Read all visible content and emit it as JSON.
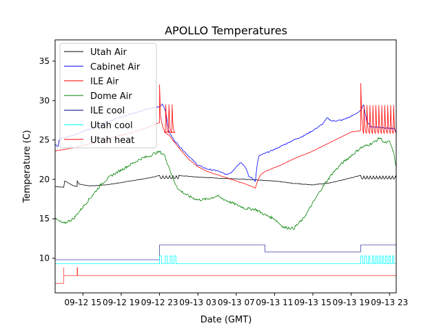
{
  "chart_data": {
    "type": "line",
    "title": "APOLLO Temperatures",
    "xlabel": "Date (GMT)",
    "ylabel": "Temperature (C)",
    "x_units": "hours since 09-12 00:00 GMT",
    "xlim": [
      12.1,
      47.7
    ],
    "ylim": [
      5.6,
      37.7
    ],
    "grid": false,
    "legend_position": "top-left",
    "x_ticks": [
      {
        "value": 15,
        "label": "09-12 15"
      },
      {
        "value": 19,
        "label": "09-12 19"
      },
      {
        "value": 23,
        "label": "09-12 23"
      },
      {
        "value": 27,
        "label": "09-13 03"
      },
      {
        "value": 31,
        "label": "09-13 07"
      },
      {
        "value": 35,
        "label": "09-13 11"
      },
      {
        "value": 39,
        "label": "09-13 15"
      },
      {
        "value": 43,
        "label": "09-13 19"
      },
      {
        "value": 47,
        "label": "09-13 23"
      }
    ],
    "y_ticks": [
      {
        "value": 10,
        "label": "10"
      },
      {
        "value": 15,
        "label": "15"
      },
      {
        "value": 20,
        "label": "20"
      },
      {
        "value": 25,
        "label": "25"
      },
      {
        "value": 30,
        "label": "30"
      },
      {
        "value": 35,
        "label": "35"
      }
    ],
    "series": [
      {
        "name": "Utah Air",
        "color": "#000000",
        "x": [
          12.1,
          13.0,
          13.0,
          13.1,
          14.0,
          14.4,
          14.4,
          14.6,
          15.5,
          16.5,
          18.0,
          20.0,
          22.0,
          23.0
        ],
        "y": [
          19.1,
          19.0,
          19.0,
          19.8,
          19.2,
          19.1,
          19.8,
          19.4,
          19.2,
          19.2,
          19.4,
          19.8,
          20.2,
          20.5
        ],
        "osc": {
          "x0": 23.0,
          "x1": 25.0,
          "amp": 0.4,
          "period": 0.35
        },
        "x2": [
          25.0,
          27.0,
          30.0,
          32.0,
          35.0,
          37.0,
          39.0,
          41.0,
          43.0,
          44.0
        ],
        "y2": [
          20.5,
          20.3,
          20.1,
          20.0,
          19.8,
          19.5,
          19.3,
          19.6,
          20.2,
          20.5
        ],
        "osc2": {
          "x0": 44.0,
          "x1": 47.7,
          "amp": 0.4,
          "period": 0.33
        }
      },
      {
        "name": "Cabinet Air",
        "color": "#0000ff",
        "x": [
          12.1,
          12.4,
          12.5,
          13.0,
          14.0,
          16.0,
          18.0,
          20.0,
          22.0,
          23.0,
          23.3,
          23.6,
          24.0,
          24.5,
          25.0,
          26.0,
          27.0,
          28.0,
          29.0,
          30.0,
          30.5,
          31.0,
          31.5,
          32.0,
          32.3,
          32.6,
          33.0,
          33.2,
          33.4,
          34.0,
          35.0,
          36.0,
          37.0,
          38.0,
          39.0,
          40.0,
          40.5,
          41.0,
          42.0,
          43.0,
          44.0,
          44.3,
          44.6,
          45.0,
          46.0,
          47.0,
          47.5,
          47.7
        ],
        "y": [
          24.4,
          24.2,
          25.0,
          25.3,
          25.6,
          26.5,
          27.5,
          28.3,
          29.0,
          29.2,
          29.6,
          28.8,
          26.0,
          25.0,
          24.3,
          23.0,
          21.8,
          21.3,
          21.1,
          20.6,
          20.9,
          21.6,
          22.2,
          21.5,
          20.4,
          20.2,
          19.8,
          22.0,
          23.0,
          23.3,
          23.8,
          24.4,
          25.0,
          25.5,
          26.2,
          27.0,
          27.8,
          27.4,
          27.5,
          28.0,
          28.7,
          29.5,
          27.5,
          26.7,
          26.6,
          26.5,
          26.4,
          26.0
        ]
      },
      {
        "name": "ILE Air",
        "color": "#ff0000",
        "x": [
          12.1,
          14.0,
          16.0,
          18.0,
          20.0,
          22.0,
          23.0,
          23.0,
          23.1,
          23.3,
          23.5,
          24.0,
          25.0,
          26.0,
          27.0,
          28.0,
          29.0,
          30.0,
          31.0,
          32.0,
          33.0,
          33.2,
          33.5,
          34.0,
          35.0,
          36.0,
          37.0,
          38.0,
          39.0,
          40.0,
          41.0,
          42.0,
          43.0,
          44.0
        ],
        "y": [
          23.6,
          24.0,
          24.6,
          25.3,
          25.9,
          26.7,
          27.2,
          32.0,
          27.5,
          26.5,
          26.0,
          25.6,
          24.0,
          22.6,
          21.6,
          21.0,
          20.6,
          20.2,
          19.8,
          19.4,
          18.9,
          19.7,
          20.5,
          21.0,
          21.5,
          22.0,
          22.6,
          23.1,
          23.6,
          24.2,
          24.8,
          25.4,
          26.0,
          26.2
        ],
        "spikes": [
          {
            "x0": 23.6,
            "x1": 24.6,
            "n": 3,
            "hi": 29.5,
            "lo": 25.9
          }
        ],
        "tail": {
          "x0": 44.0,
          "peak": 32.2,
          "x1": 47.7,
          "n": 11,
          "hi": 29.4,
          "lo": 25.8
        }
      },
      {
        "name": "Dome Air",
        "color": "#008000",
        "x": [
          12.1,
          12.5,
          13.0,
          14.0,
          15.0,
          16.0,
          17.0,
          18.0,
          19.0,
          20.0,
          21.0,
          22.0,
          22.5,
          23.0,
          23.5,
          24.0,
          24.5,
          25.0,
          26.0,
          27.0,
          28.0,
          29.0,
          30.0,
          31.0,
          32.0,
          33.0,
          34.0,
          35.0,
          35.5,
          36.0,
          37.0,
          38.0,
          39.0,
          40.0,
          41.0,
          42.0,
          43.0,
          44.0,
          45.0,
          45.5,
          46.0,
          46.5,
          47.0,
          47.4,
          47.7
        ],
        "y": [
          15.0,
          14.7,
          14.4,
          15.0,
          16.5,
          18.0,
          19.5,
          20.5,
          21.2,
          21.9,
          22.6,
          23.0,
          23.3,
          23.5,
          23.1,
          21.5,
          19.8,
          18.7,
          17.9,
          17.4,
          17.5,
          17.9,
          17.3,
          16.8,
          16.3,
          16.2,
          15.5,
          15.0,
          14.4,
          13.9,
          13.8,
          15.0,
          17.0,
          19.0,
          20.7,
          22.0,
          23.0,
          24.0,
          24.5,
          24.8,
          25.3,
          24.6,
          24.8,
          23.5,
          21.6
        ]
      },
      {
        "name": "ILE cool",
        "color": "#00008b",
        "x": [
          12.1,
          23.0,
          23.0,
          34.0,
          34.0,
          44.0,
          44.0,
          47.7
        ],
        "y": [
          9.8,
          9.8,
          11.7,
          11.7,
          10.8,
          10.8,
          11.7,
          11.7
        ]
      },
      {
        "name": "Utah cool",
        "color": "#00ffff",
        "base": 9.3,
        "hi": 10.3,
        "x": [
          12.1,
          47.7
        ],
        "y": [
          9.3,
          9.3
        ],
        "pulses": [
          [
            23.0,
            23.2
          ],
          [
            23.6,
            23.8
          ],
          [
            24.1,
            24.3
          ],
          [
            24.5,
            24.7
          ],
          [
            44.0,
            44.2
          ],
          [
            44.4,
            44.6
          ],
          [
            44.8,
            44.95
          ],
          [
            45.2,
            45.35
          ],
          [
            45.55,
            45.7
          ],
          [
            45.9,
            46.05
          ],
          [
            46.25,
            46.4
          ],
          [
            46.6,
            46.75
          ],
          [
            46.95,
            47.1
          ],
          [
            47.3,
            47.45
          ]
        ]
      },
      {
        "name": "Utah heat",
        "color": "#ff0000",
        "x": [
          12.1,
          13.0,
          13.0,
          13.0,
          13.0,
          14.4,
          14.4,
          14.45,
          14.45,
          47.7
        ],
        "y": [
          6.8,
          6.8,
          8.8,
          7.8,
          7.8,
          7.8,
          8.8,
          8.8,
          7.8,
          7.8
        ]
      }
    ]
  }
}
